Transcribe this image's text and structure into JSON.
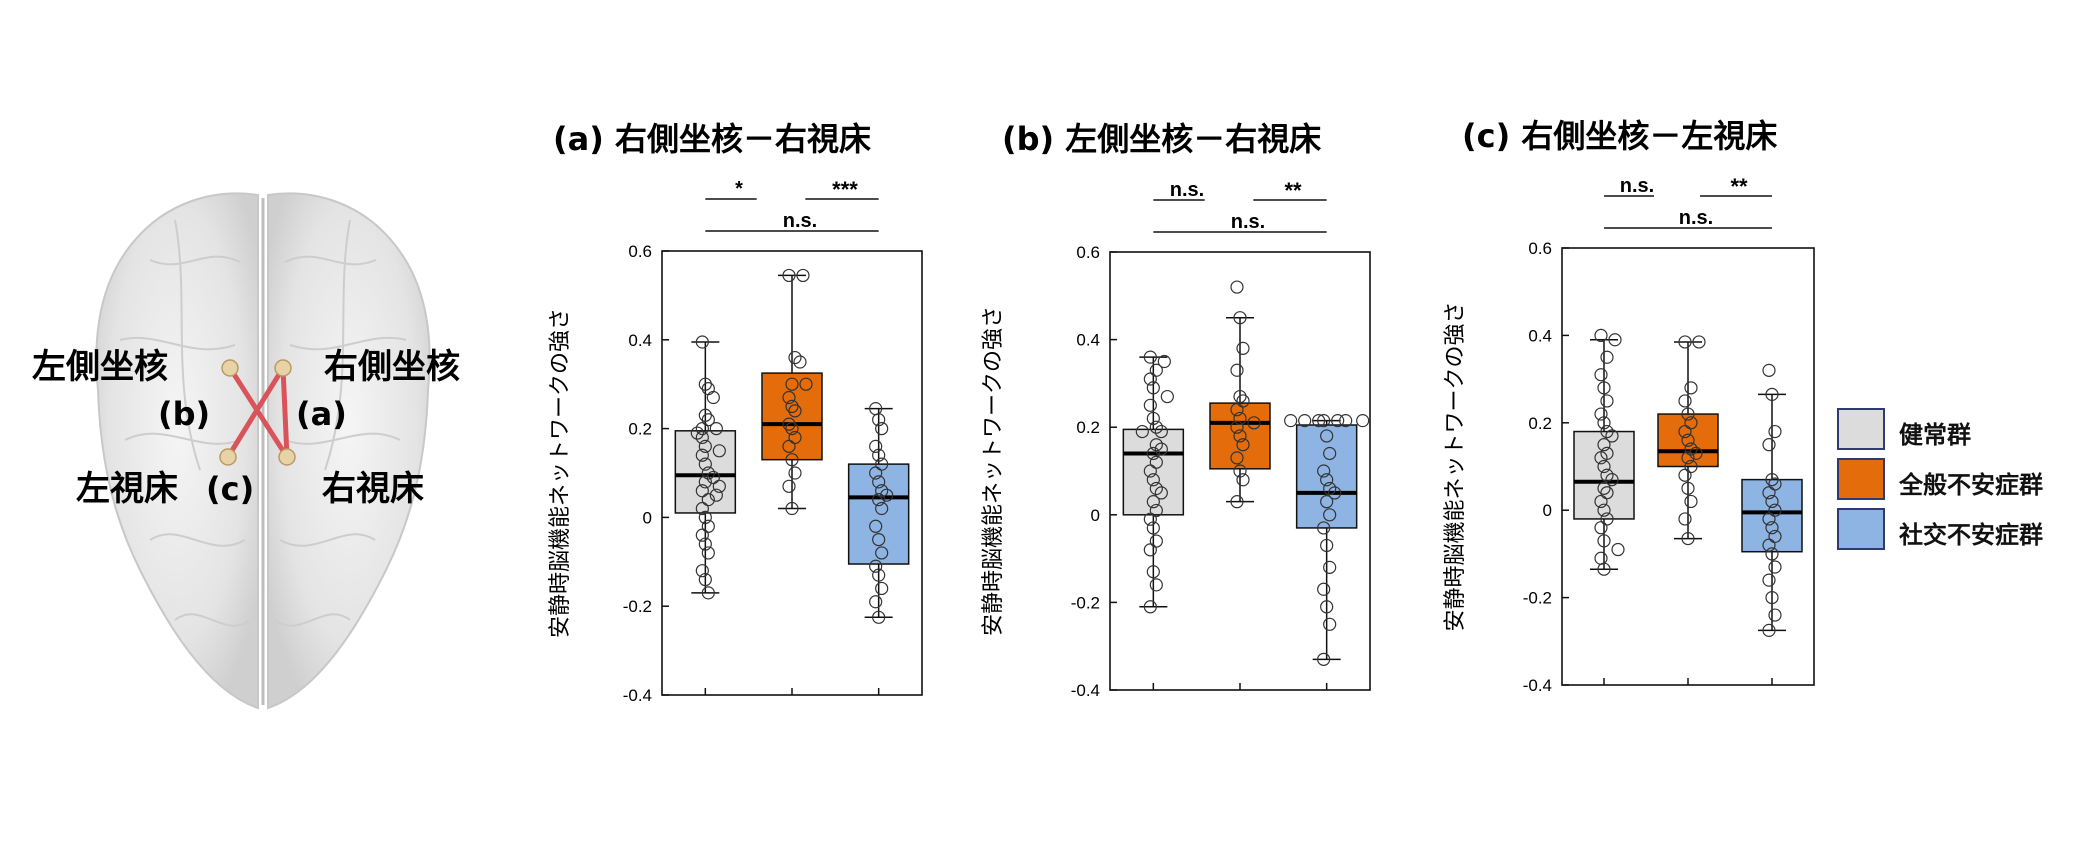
{
  "brain": {
    "labels": {
      "left_nucleus": "左側坐核",
      "right_nucleus": "右側坐核",
      "left_thalamus": "左視床",
      "right_thalamus": "右視床",
      "b": "(b)",
      "a": "(a)",
      "c": "(c)"
    },
    "connection_color": "#d9545a",
    "node_color": "#e8d3a6"
  },
  "colors": {
    "healthy": "#dcdcdc",
    "gad": "#e46c0a",
    "sad": "#8eb4e3",
    "axis": "#111111"
  },
  "legend": {
    "items": [
      {
        "label": "健常群",
        "color": "#dcdcdc"
      },
      {
        "label": "全般不安症群",
        "color": "#e46c0a"
      },
      {
        "label": "社交不安症群",
        "color": "#8eb4e3"
      }
    ]
  },
  "chart_data": [
    {
      "type": "box",
      "title": "(a) 右側坐核－右視床",
      "ylabel": "安静時脳機能ネットワークの強さ",
      "ylim": [
        -0.4,
        0.6
      ],
      "yticks": [
        "0.6",
        "0.4",
        "0.2",
        "0",
        "-0.2",
        "-0.4"
      ],
      "significance": {
        "pair12": "*",
        "pair23": "***",
        "pair13": "n.s."
      },
      "series": [
        {
          "name": "健常群",
          "q1": 0.01,
          "median": 0.095,
          "q3": 0.195,
          "whisker_low": -0.17,
          "whisker_high": 0.395,
          "points": [
            0.395,
            0.3,
            0.29,
            0.27,
            0.23,
            0.22,
            0.2,
            0.2,
            0.19,
            0.18,
            0.16,
            0.15,
            0.14,
            0.12,
            0.1,
            0.09,
            0.08,
            0.07,
            0.06,
            0.05,
            0.04,
            0.02,
            0.0,
            -0.02,
            -0.04,
            -0.06,
            -0.08,
            -0.12,
            -0.14,
            -0.17
          ]
        },
        {
          "name": "全般不安症群",
          "q1": 0.13,
          "median": 0.21,
          "q3": 0.325,
          "whisker_low": 0.02,
          "whisker_high": 0.545,
          "points": [
            0.545,
            0.545,
            0.36,
            0.35,
            0.3,
            0.3,
            0.27,
            0.25,
            0.24,
            0.21,
            0.2,
            0.18,
            0.16,
            0.13,
            0.1,
            0.07,
            0.02
          ]
        },
        {
          "name": "社交不安症群",
          "q1": -0.105,
          "median": 0.045,
          "q3": 0.12,
          "whisker_low": -0.225,
          "whisker_high": 0.245,
          "points": [
            0.245,
            0.22,
            0.2,
            0.16,
            0.14,
            0.12,
            0.1,
            0.08,
            0.06,
            0.05,
            0.04,
            0.02,
            -0.02,
            -0.05,
            -0.08,
            -0.11,
            -0.13,
            -0.16,
            -0.19,
            -0.225
          ]
        }
      ]
    },
    {
      "type": "box",
      "title": "(b) 左側坐核－右視床",
      "ylabel": "安静時脳機能ネットワークの強さ",
      "ylim": [
        -0.4,
        0.6
      ],
      "yticks": [
        "0.6",
        "0.4",
        "0.2",
        "0",
        "-0.2",
        "-0.4"
      ],
      "significance": {
        "pair12": "n.s.",
        "pair23": "**",
        "pair13": "n.s."
      },
      "series": [
        {
          "name": "健常群",
          "q1": 0.0,
          "median": 0.14,
          "q3": 0.195,
          "whisker_low": -0.21,
          "whisker_high": 0.36,
          "points": [
            0.36,
            0.35,
            0.33,
            0.31,
            0.29,
            0.27,
            0.25,
            0.22,
            0.2,
            0.19,
            0.19,
            0.16,
            0.15,
            0.14,
            0.12,
            0.1,
            0.08,
            0.06,
            0.05,
            0.03,
            0.01,
            -0.01,
            -0.03,
            -0.06,
            -0.08,
            -0.13,
            -0.16,
            -0.21
          ]
        },
        {
          "name": "全般不安症群",
          "q1": 0.105,
          "median": 0.21,
          "q3": 0.255,
          "whisker_low": 0.03,
          "whisker_high": 0.45,
          "points": [
            0.52,
            0.45,
            0.38,
            0.33,
            0.27,
            0.26,
            0.24,
            0.22,
            0.21,
            0.2,
            0.18,
            0.16,
            0.13,
            0.1,
            0.08,
            0.03
          ]
        },
        {
          "name": "社交不安症群",
          "q1": -0.03,
          "median": 0.05,
          "q3": 0.205,
          "whisker_low": -0.33,
          "whisker_high": 0.215,
          "points": [
            0.215,
            0.215,
            0.215,
            0.215,
            0.215,
            0.215,
            0.215,
            0.18,
            0.14,
            0.1,
            0.08,
            0.06,
            0.05,
            0.03,
            0.0,
            -0.03,
            -0.07,
            -0.12,
            -0.17,
            -0.21,
            -0.25,
            -0.33
          ]
        }
      ]
    },
    {
      "type": "box",
      "title": "(c) 右側坐核－左視床",
      "ylabel": "安静時脳機能ネットワークの強さ",
      "ylim": [
        -0.4,
        0.6
      ],
      "yticks": [
        "0.6",
        "0.4",
        "0.2",
        "0",
        "-0.2",
        "-0.4"
      ],
      "significance": {
        "pair12": "n.s.",
        "pair23": "**",
        "pair13": "n.s."
      },
      "series": [
        {
          "name": "健常群",
          "q1": -0.02,
          "median": 0.065,
          "q3": 0.18,
          "whisker_low": -0.135,
          "whisker_high": 0.39,
          "points": [
            0.4,
            0.39,
            0.35,
            0.31,
            0.28,
            0.25,
            0.22,
            0.2,
            0.18,
            0.17,
            0.15,
            0.13,
            0.12,
            0.1,
            0.08,
            0.07,
            0.05,
            0.04,
            0.02,
            0.0,
            -0.02,
            -0.04,
            -0.07,
            -0.09,
            -0.11,
            -0.135
          ]
        },
        {
          "name": "全般不安症群",
          "q1": 0.1,
          "median": 0.135,
          "q3": 0.22,
          "whisker_low": -0.065,
          "whisker_high": 0.385,
          "points": [
            0.385,
            0.385,
            0.28,
            0.25,
            0.22,
            0.2,
            0.18,
            0.16,
            0.14,
            0.13,
            0.12,
            0.1,
            0.08,
            0.05,
            0.02,
            -0.02,
            -0.065
          ]
        },
        {
          "name": "社交不安症群",
          "q1": -0.095,
          "median": -0.005,
          "q3": 0.07,
          "whisker_low": -0.275,
          "whisker_high": 0.265,
          "points": [
            0.32,
            0.265,
            0.18,
            0.15,
            0.07,
            0.06,
            0.04,
            0.02,
            0.0,
            -0.02,
            -0.04,
            -0.06,
            -0.08,
            -0.1,
            -0.13,
            -0.16,
            -0.2,
            -0.24,
            -0.275
          ]
        }
      ]
    }
  ]
}
